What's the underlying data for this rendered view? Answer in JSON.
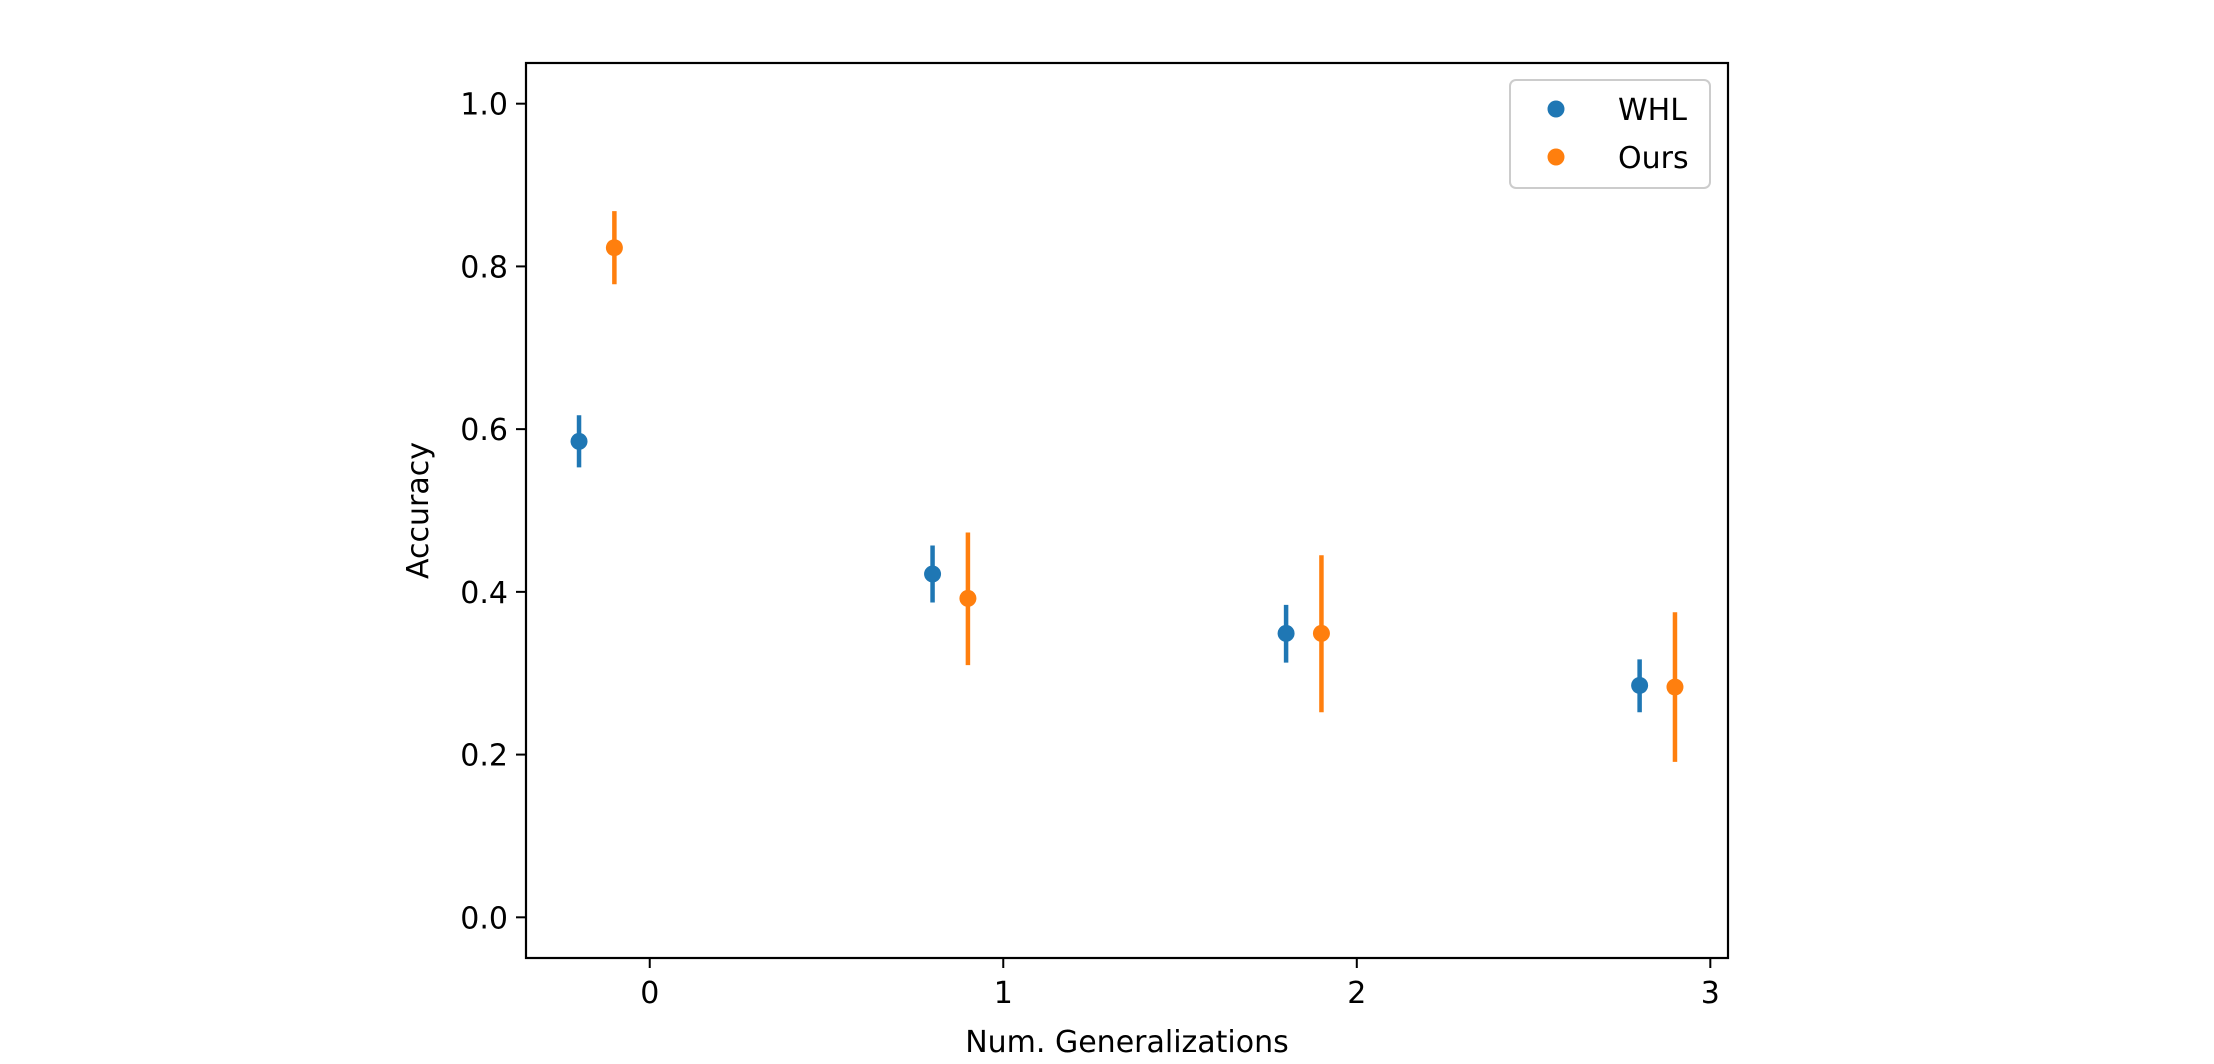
{
  "chart_data": {
    "type": "scatter",
    "xlabel": "Num. Generalizations",
    "ylabel": "Accuracy",
    "xlim": [
      -0.35,
      3.05
    ],
    "ylim": [
      -0.05,
      1.05
    ],
    "xticks": [
      0,
      1,
      2,
      3
    ],
    "xtick_labels": [
      "0",
      "1",
      "2",
      "3"
    ],
    "yticks": [
      0.0,
      0.2,
      0.4,
      0.6,
      0.8,
      1.0
    ],
    "ytick_labels": [
      "0.0",
      "0.2",
      "0.4",
      "0.6",
      "0.8",
      "1.0"
    ],
    "grid": false,
    "legend_position": "top-right",
    "series": [
      {
        "name": "WHL",
        "color": "#1f77b4",
        "x": [
          -0.2,
          0.8,
          1.8,
          2.8
        ],
        "y": [
          0.585,
          0.422,
          0.349,
          0.285
        ],
        "err_low": [
          0.553,
          0.387,
          0.313,
          0.252
        ],
        "err_high": [
          0.617,
          0.457,
          0.384,
          0.317
        ]
      },
      {
        "name": "Ours",
        "color": "#ff7f0e",
        "x": [
          -0.1,
          0.9,
          1.9,
          2.9
        ],
        "y": [
          0.823,
          0.392,
          0.349,
          0.283
        ],
        "err_low": [
          0.778,
          0.31,
          0.252,
          0.191
        ],
        "err_high": [
          0.868,
          0.473,
          0.445,
          0.375
        ]
      }
    ]
  }
}
